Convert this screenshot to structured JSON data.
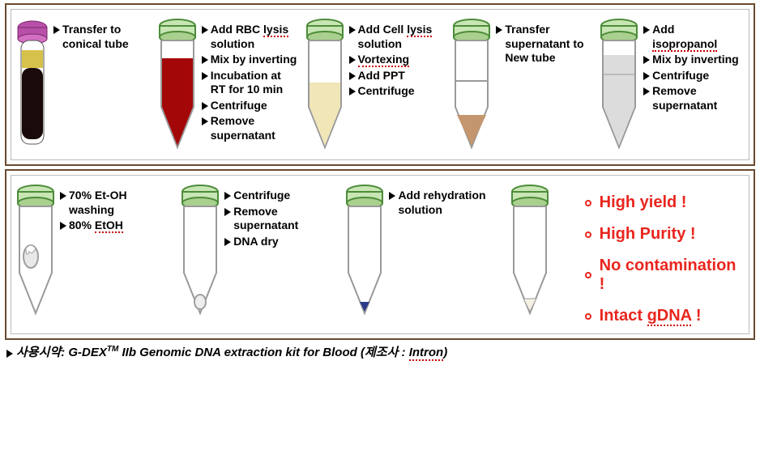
{
  "colors": {
    "panel_border": "#6b4a2e",
    "inner_border": "#bbbbbb",
    "text": "#000000",
    "highlight_red": "#e8261e",
    "squiggle": "#cc0000",
    "cap_green_light": "#c8e6b4",
    "cap_green_dark": "#4d8c3a",
    "tube_stroke": "#9a9a9a",
    "tube_fill": "#ffffff",
    "blood_red": "#a30707",
    "cream": "#f0e6b8",
    "pellet_tan": "#c4966e",
    "grey_fill": "#dcdcdc",
    "photo_cap": "#b84fa8",
    "photo_serum": "#d6c24a",
    "photo_blood": "#1a0a0a",
    "pellet_grey": "#9e9e9e",
    "dna_blue": "#2a3a8a"
  },
  "panel1": {
    "steps": [
      {
        "tube": "photo",
        "notes": [
          "Transfer to conical tube"
        ]
      },
      {
        "tube": "conical_red",
        "notes": [
          "Add  RBC <u>lysis</u> solution",
          "Mix by inverting",
          "Incubation at RT for 10 min",
          "Centrifuge",
          "Remove supernatant"
        ]
      },
      {
        "tube": "conical_cream",
        "notes": [
          "Add Cell <u>lysis</u> solution",
          "<u>Vortexing</u>",
          "Add PPT",
          "Centrifuge"
        ]
      },
      {
        "tube": "conical_tan_pellet",
        "notes": [
          "Transfer supernatant to New tube"
        ]
      },
      {
        "tube": "conical_grey",
        "notes": [
          "Add <u>isopropanol</u>",
          "Mix by inverting",
          "Centrifuge",
          "Remove supernatant"
        ]
      }
    ]
  },
  "panel2": {
    "steps": [
      {
        "tube": "conical_pellet_mid",
        "notes": [
          "70% Et-OH washing",
          "80% <u>EtOH</u>"
        ]
      },
      {
        "tube": "conical_pellet_bottom",
        "notes": [
          "Centrifuge",
          "Remove supernatant",
          "DNA dry"
        ]
      },
      {
        "tube": "conical_blue_tip",
        "notes": [
          "Add rehydration solution"
        ]
      },
      {
        "tube": "conical_empty",
        "notes": []
      }
    ],
    "benefits": [
      "High yield !",
      "High Purity !",
      "No contamination !",
      "Intact <u>gDNA</u> !"
    ]
  },
  "footer": {
    "prefix": "사용시약:",
    "product": "G-DEX",
    "tm": "TM",
    "suffix1": " IIb Genomic DNA extraction kit for Blood ",
    "suffix2": "(제조사 : ",
    "vendor": "Intron",
    "suffix3": ")"
  }
}
